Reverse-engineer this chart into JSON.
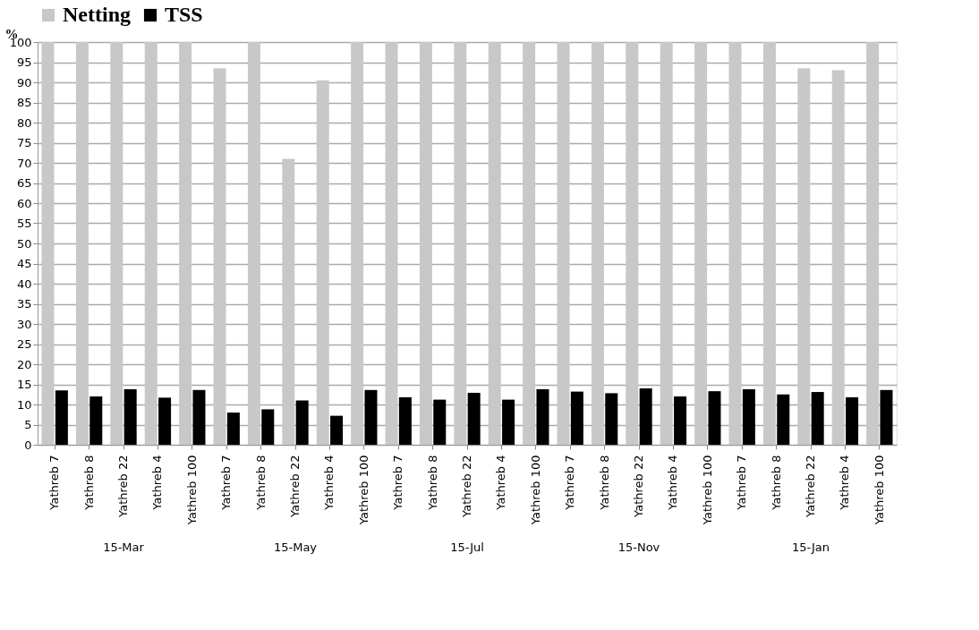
{
  "chart_data": {
    "type": "bar",
    "ylabel": "%",
    "categories": [
      "Yathreb 7",
      "Yathreb 8",
      "Yathreb 22",
      "Yathreb 4",
      "Yathreb 100",
      "Yathreb 7",
      "Yathreb 8",
      "Yathreb 22",
      "Yathreb 4",
      "Yathreb 100",
      "Yathreb 7",
      "Yathreb 8",
      "Yathreb 22",
      "Yathreb 4",
      "Yathreb 100",
      "Yathreb 7",
      "Yathreb 8",
      "Yathreb 22",
      "Yathreb 4",
      "Yathreb 100",
      "Yathreb 7",
      "Yathreb 8",
      "Yathreb 22",
      "Yathreb 4",
      "Yathreb 100"
    ],
    "series": [
      {
        "name": "Netting",
        "color": "#c8c8c8",
        "values": [
          100,
          100,
          100,
          100,
          100,
          93.5,
          100,
          71,
          90.5,
          100,
          100,
          100,
          100,
          100,
          100,
          100,
          100,
          100,
          100,
          100,
          100,
          100,
          93.5,
          93,
          100
        ]
      },
      {
        "name": "TSS",
        "color": "#000000",
        "values": [
          13.5,
          12,
          13.8,
          11.7,
          13.6,
          8,
          8.8,
          11,
          7.2,
          13.6,
          11.8,
          11.2,
          12.9,
          11.2,
          13.8,
          13.2,
          12.8,
          14,
          12,
          13.3,
          13.8,
          12.5,
          13.1,
          11.8,
          13.6
        ]
      }
    ],
    "annotations": [
      "15-Mar",
      "15-May",
      "15-Jul",
      "15-Nov",
      "15-Jan"
    ],
    "ylim": [
      0,
      100
    ],
    "yticks": [
      0,
      5,
      10,
      15,
      20,
      25,
      30,
      35,
      40,
      45,
      50,
      55,
      60,
      65,
      70,
      75,
      80,
      85,
      90,
      95,
      100
    ],
    "grid": "y",
    "legend": "top"
  }
}
